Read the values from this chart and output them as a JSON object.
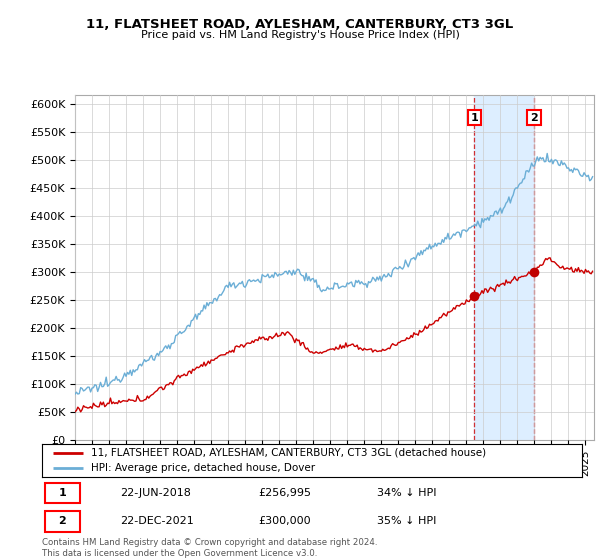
{
  "title": "11, FLATSHEET ROAD, AYLESHAM, CANTERBURY, CT3 3GL",
  "subtitle": "Price paid vs. HM Land Registry's House Price Index (HPI)",
  "yticks": [
    0,
    50000,
    100000,
    150000,
    200000,
    250000,
    300000,
    350000,
    400000,
    450000,
    500000,
    550000,
    600000
  ],
  "ytick_labels": [
    "£0",
    "£50K",
    "£100K",
    "£150K",
    "£200K",
    "£250K",
    "£300K",
    "£350K",
    "£400K",
    "£450K",
    "£500K",
    "£550K",
    "£600K"
  ],
  "ylim": [
    0,
    615000
  ],
  "xlim_left": 1995,
  "xlim_right": 2025.5,
  "sale1_date": 2018.47,
  "sale1_price": 256995,
  "sale1_label": "1",
  "sale2_date": 2021.97,
  "sale2_price": 300000,
  "sale2_label": "2",
  "hpi_color": "#6baed6",
  "price_color": "#cc0000",
  "sale_marker_color": "#c00000",
  "shade_color": "#ddeeff",
  "legend_entry1": "11, FLATSHEET ROAD, AYLESHAM, CANTERBURY, CT3 3GL (detached house)",
  "legend_entry2": "HPI: Average price, detached house, Dover",
  "table_row1": [
    "1",
    "22-JUN-2018",
    "£256,995",
    "34% ↓ HPI"
  ],
  "table_row2": [
    "2",
    "22-DEC-2021",
    "£300,000",
    "35% ↓ HPI"
  ],
  "footer1": "Contains HM Land Registry data © Crown copyright and database right 2024.",
  "footer2": "This data is licensed under the Open Government Licence v3.0.",
  "background_color": "#ffffff",
  "grid_color": "#cccccc"
}
